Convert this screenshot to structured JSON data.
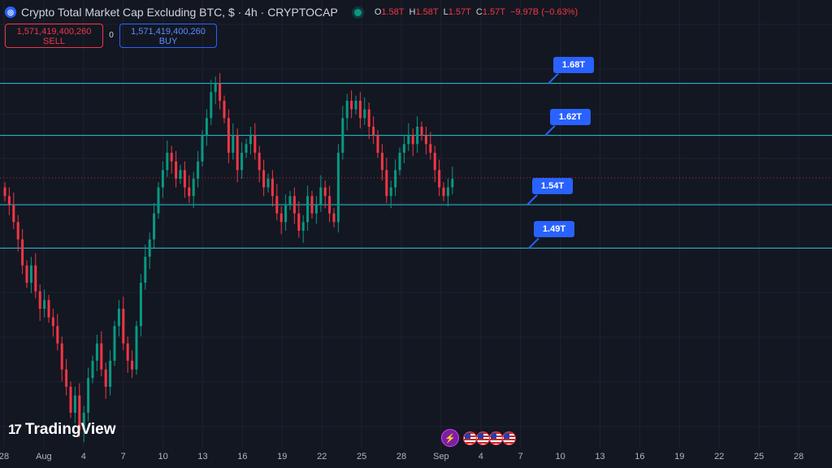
{
  "header": {
    "symbol_icon": "coin-icon",
    "title": "Crypto Total Market Cap Excluding BTC, $ · 4h · CRYPTOCAP",
    "market_status": "open",
    "ohlc": [
      {
        "key": "O",
        "value": "1.58T"
      },
      {
        "key": "H",
        "value": "1.58T"
      },
      {
        "key": "L",
        "value": "1.57T"
      },
      {
        "key": "C",
        "value": "1.57T"
      }
    ],
    "change": "−9.97B (−0.63%)"
  },
  "trade": {
    "sell_price": "1,571,419,400,260",
    "sell_label": "SELL",
    "spread": "0",
    "buy_price": "1,571,419,400,260",
    "buy_label": "BUY"
  },
  "levels": [
    {
      "value": 1.68,
      "label": "1.68T"
    },
    {
      "value": 1.62,
      "label": "1.62T"
    },
    {
      "value": 1.54,
      "label": "1.54T"
    },
    {
      "value": 1.49,
      "label": "1.49T"
    }
  ],
  "last_price": 1.571,
  "colors": {
    "up": "#089981",
    "down": "#f23645",
    "level": "#26c6da",
    "label_bg": "#2962ff",
    "background": "#131722"
  },
  "x_axis_labels": [
    "28",
    "Aug",
    "4",
    "7",
    "10",
    "13",
    "16",
    "19",
    "22",
    "25",
    "28",
    "Sep",
    "4",
    "7",
    "10",
    "13",
    "16",
    "19",
    "22",
    "25",
    "28"
  ],
  "branding": {
    "logo_text": "TradingView",
    "logo_mark": "17"
  },
  "events": {
    "bolt_icon": "lightning-icon",
    "flags": [
      "us-flag-icon",
      "us-flag-icon",
      "us-flag-icon",
      "us-flag-icon"
    ]
  },
  "chart_data": {
    "type": "candlestick",
    "unit": "T USD",
    "interval": "4h",
    "ylim": [
      1.27,
      1.72
    ],
    "series_close": [
      1.55,
      1.54,
      1.52,
      1.5,
      1.47,
      1.45,
      1.47,
      1.44,
      1.42,
      1.43,
      1.41,
      1.4,
      1.38,
      1.35,
      1.33,
      1.3,
      1.32,
      1.28,
      1.3,
      1.34,
      1.36,
      1.38,
      1.35,
      1.33,
      1.36,
      1.4,
      1.42,
      1.38,
      1.36,
      1.35,
      1.4,
      1.45,
      1.48,
      1.5,
      1.53,
      1.56,
      1.58,
      1.6,
      1.59,
      1.57,
      1.58,
      1.56,
      1.55,
      1.57,
      1.59,
      1.62,
      1.64,
      1.67,
      1.68,
      1.66,
      1.64,
      1.6,
      1.62,
      1.58,
      1.6,
      1.61,
      1.62,
      1.6,
      1.58,
      1.56,
      1.57,
      1.55,
      1.53,
      1.52,
      1.54,
      1.55,
      1.53,
      1.51,
      1.52,
      1.55,
      1.53,
      1.54,
      1.56,
      1.55,
      1.53,
      1.52,
      1.6,
      1.64,
      1.66,
      1.65,
      1.66,
      1.64,
      1.65,
      1.63,
      1.62,
      1.6,
      1.58,
      1.55,
      1.56,
      1.58,
      1.6,
      1.61,
      1.62,
      1.61,
      1.63,
      1.62,
      1.61,
      1.6,
      1.58,
      1.56,
      1.55,
      1.56,
      1.57
    ]
  }
}
